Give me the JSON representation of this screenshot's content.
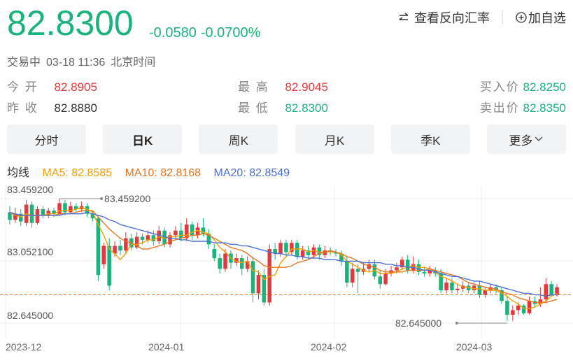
{
  "header": {
    "price": "82.8300",
    "change": "-0.0580",
    "change_pct": "-0.0700%",
    "actions": {
      "reverse": "查看反向汇率",
      "add": "加自选"
    }
  },
  "status": {
    "state": "交易中",
    "datetime": "03-18 11:36",
    "tz": "北京时间"
  },
  "quote": {
    "open_label": "今 开",
    "open": "82.8905",
    "prev_label": "昨 收",
    "prev": "82.8880",
    "high_label": "最 高",
    "high": "82.9045",
    "low_label": "最 低",
    "low": "82.8300",
    "bid_label": "买入价",
    "bid": "82.8250",
    "ask_label": "卖出价",
    "ask": "82.8350"
  },
  "tabs": [
    "分时",
    "日K",
    "周K",
    "月K",
    "季K",
    "更多"
  ],
  "ma": {
    "label": "均线",
    "ma5": "MA5: 82.8585",
    "ma10": "MA10: 82.8168",
    "ma20": "MA20: 82.8549"
  },
  "colors": {
    "up": "#e4393c",
    "down": "#1bb27b",
    "ma5": "#f0a000",
    "ma10": "#e87722",
    "ma20": "#4a6fd6"
  },
  "chart_data": {
    "type": "candlestick",
    "y_labels": [
      "83.459200",
      "83.052100",
      "82.645000"
    ],
    "max_marker": "83.459200",
    "min_marker": "82.645000",
    "x_labels": [
      "2023-12",
      "2024-01",
      "2024-02",
      "2024-03"
    ],
    "reference_line": 82.83,
    "ylim": [
      82.645,
      83.4592
    ],
    "candles": [
      [
        83.37,
        83.32,
        83.41,
        83.29
      ],
      [
        83.32,
        83.36,
        83.4,
        83.3
      ],
      [
        83.36,
        83.31,
        83.39,
        83.28
      ],
      [
        83.3,
        83.42,
        83.45,
        83.28
      ],
      [
        83.42,
        83.3,
        83.44,
        83.27
      ],
      [
        83.3,
        83.39,
        83.41,
        83.29
      ],
      [
        83.39,
        83.35,
        83.41,
        83.33
      ],
      [
        83.35,
        83.38,
        83.4,
        83.33
      ],
      [
        83.38,
        83.36,
        83.4,
        83.34
      ],
      [
        83.36,
        83.43,
        83.46,
        83.35
      ],
      [
        83.43,
        83.37,
        83.45,
        83.35
      ],
      [
        83.37,
        83.41,
        83.44,
        83.36
      ],
      [
        83.41,
        83.39,
        83.43,
        83.37
      ],
      [
        83.39,
        83.41,
        83.44,
        83.37
      ],
      [
        83.41,
        83.36,
        83.43,
        83.34
      ],
      [
        83.36,
        83.33,
        83.38,
        83.31
      ],
      [
        83.33,
        82.96,
        83.35,
        82.92
      ],
      [
        83.03,
        83.15,
        83.17,
        83.0
      ],
      [
        83.15,
        82.89,
        83.2,
        82.86
      ],
      [
        83.1,
        83.15,
        83.18,
        83.08
      ],
      [
        83.15,
        83.12,
        83.19,
        83.09
      ],
      [
        83.12,
        83.2,
        83.24,
        83.1
      ],
      [
        83.2,
        83.14,
        83.23,
        83.12
      ],
      [
        83.14,
        83.21,
        83.24,
        83.13
      ],
      [
        83.21,
        83.19,
        83.23,
        83.16
      ],
      [
        83.19,
        83.22,
        83.25,
        83.17
      ],
      [
        83.22,
        83.18,
        83.25,
        83.15
      ],
      [
        83.18,
        83.25,
        83.28,
        83.16
      ],
      [
        83.25,
        83.16,
        83.27,
        83.14
      ],
      [
        83.16,
        83.22,
        83.24,
        83.14
      ],
      [
        83.22,
        83.25,
        83.28,
        83.2
      ],
      [
        83.25,
        83.2,
        83.3,
        83.18
      ],
      [
        83.2,
        83.29,
        83.33,
        83.18
      ],
      [
        83.29,
        83.22,
        83.31,
        83.19
      ],
      [
        83.22,
        83.27,
        83.3,
        83.2
      ],
      [
        83.27,
        83.23,
        83.33,
        83.21
      ],
      [
        83.23,
        83.16,
        83.26,
        83.13
      ],
      [
        83.13,
        83.07,
        83.16,
        83.05
      ],
      [
        83.07,
        83.0,
        83.1,
        82.97
      ],
      [
        83.0,
        83.1,
        83.13,
        82.98
      ],
      [
        83.1,
        83.04,
        83.12,
        83.0
      ],
      [
        83.04,
        83.07,
        83.1,
        83.02
      ],
      [
        83.07,
        83.0,
        83.09,
        82.96
      ],
      [
        83.0,
        83.05,
        83.08,
        82.98
      ],
      [
        83.05,
        82.84,
        83.08,
        82.78
      ],
      [
        82.84,
        82.96,
        82.99,
        82.8
      ],
      [
        82.96,
        82.78,
        83.0,
        82.76
      ],
      [
        82.78,
        83.13,
        83.16,
        82.76
      ],
      [
        83.13,
        83.1,
        83.17,
        83.06
      ],
      [
        83.1,
        83.17,
        83.19,
        83.08
      ],
      [
        83.17,
        83.11,
        83.19,
        83.09
      ],
      [
        83.11,
        83.17,
        83.19,
        83.09
      ],
      [
        83.17,
        83.08,
        83.19,
        83.06
      ],
      [
        83.08,
        83.12,
        83.15,
        83.06
      ],
      [
        83.12,
        83.09,
        83.15,
        83.07
      ],
      [
        83.09,
        83.14,
        83.16,
        83.07
      ],
      [
        83.14,
        83.09,
        83.16,
        83.06
      ],
      [
        83.09,
        83.12,
        83.15,
        83.07
      ],
      [
        83.12,
        83.11,
        83.14,
        83.09
      ],
      [
        83.11,
        83.1,
        83.13,
        83.08
      ],
      [
        83.1,
        83.05,
        83.12,
        83.02
      ],
      [
        83.05,
        82.91,
        83.08,
        82.88
      ],
      [
        82.91,
        83.0,
        83.04,
        82.88
      ],
      [
        83.0,
        82.98,
        83.03,
        82.84
      ],
      [
        82.98,
        83.0,
        83.04,
        82.96
      ],
      [
        83.0,
        83.03,
        83.06,
        82.98
      ],
      [
        83.03,
        82.95,
        83.06,
        82.93
      ],
      [
        82.95,
        82.9,
        82.99,
        82.87
      ],
      [
        82.9,
        82.97,
        83.0,
        82.89
      ],
      [
        82.97,
        82.99,
        83.02,
        82.95
      ],
      [
        82.99,
        83.01,
        83.04,
        82.97
      ],
      [
        83.01,
        83.06,
        83.08,
        82.99
      ],
      [
        83.06,
        82.99,
        83.09,
        82.97
      ],
      [
        82.99,
        83.03,
        83.08,
        82.97
      ],
      [
        83.03,
        82.98,
        83.06,
        82.96
      ],
      [
        82.98,
        82.97,
        83.01,
        82.95
      ],
      [
        82.97,
        82.99,
        83.02,
        82.95
      ],
      [
        82.99,
        82.97,
        83.01,
        82.95
      ],
      [
        82.97,
        82.86,
        83.0,
        82.84
      ],
      [
        82.86,
        82.91,
        82.94,
        82.84
      ],
      [
        82.91,
        82.86,
        82.94,
        82.84
      ],
      [
        82.86,
        82.87,
        82.9,
        82.84
      ],
      [
        82.87,
        82.89,
        82.92,
        82.85
      ],
      [
        82.89,
        82.86,
        82.91,
        82.84
      ],
      [
        82.86,
        82.89,
        82.91,
        82.84
      ],
      [
        82.89,
        82.83,
        82.92,
        82.81
      ],
      [
        82.83,
        82.86,
        82.88,
        82.81
      ],
      [
        82.86,
        82.88,
        82.9,
        82.84
      ],
      [
        82.88,
        82.86,
        82.9,
        82.84
      ],
      [
        82.86,
        82.79,
        82.88,
        82.77
      ],
      [
        82.79,
        82.7,
        82.82,
        82.66
      ],
      [
        82.7,
        82.73,
        82.76,
        82.66
      ],
      [
        82.73,
        82.76,
        82.78,
        82.7
      ],
      [
        82.76,
        82.71,
        82.77,
        82.7
      ],
      [
        82.71,
        82.79,
        82.82,
        82.7
      ],
      [
        82.79,
        82.77,
        82.82,
        82.75
      ],
      [
        82.77,
        82.8,
        82.88,
        82.75
      ],
      [
        82.8,
        82.9,
        82.94,
        82.78
      ],
      [
        82.9,
        82.83,
        82.92,
        82.82
      ],
      [
        82.83,
        82.88,
        82.9,
        82.82
      ]
    ],
    "ma5": [
      83.37,
      83.35,
      83.34,
      83.36,
      83.35,
      83.35,
      83.35,
      83.36,
      83.36,
      83.38,
      83.38,
      83.38,
      83.39,
      83.4,
      83.39,
      83.37,
      83.29,
      83.22,
      83.13,
      83.1,
      83.06,
      83.1,
      83.16,
      83.16,
      83.17,
      83.19,
      83.19,
      83.21,
      83.2,
      83.21,
      83.21,
      83.22,
      83.22,
      83.24,
      83.25,
      83.24,
      83.23,
      83.19,
      83.14,
      83.11,
      83.07,
      83.05,
      83.04,
      83.05,
      82.99,
      82.98,
      82.93,
      82.95,
      82.96,
      83.04,
      83.08,
      83.13,
      83.13,
      83.13,
      83.11,
      83.12,
      83.11,
      83.11,
      83.11,
      83.11,
      83.09,
      83.05,
      83.03,
      83.01,
      82.99,
      82.98,
      82.99,
      82.97,
      82.97,
      82.97,
      82.98,
      83.0,
      83.01,
      83.02,
      83.01,
      83.01,
      83.0,
      82.98,
      82.95,
      82.94,
      82.92,
      82.9,
      82.88,
      82.88,
      82.87,
      82.87,
      82.86,
      82.86,
      82.86,
      82.84,
      82.82,
      82.79,
      82.77,
      82.74,
      82.74,
      82.75,
      82.77,
      82.79,
      82.82,
      82.84
    ],
    "ma10": [
      83.37,
      83.35,
      83.35,
      83.35,
      83.35,
      83.35,
      83.35,
      83.35,
      83.35,
      83.36,
      83.36,
      83.36,
      83.37,
      83.38,
      83.38,
      83.38,
      83.34,
      83.3,
      83.26,
      83.23,
      83.2,
      83.18,
      83.17,
      83.15,
      83.13,
      83.13,
      83.14,
      83.15,
      83.16,
      83.18,
      83.19,
      83.2,
      83.21,
      83.22,
      83.22,
      83.23,
      83.22,
      83.2,
      83.18,
      83.16,
      83.14,
      83.13,
      83.12,
      83.1,
      83.07,
      83.05,
      83.02,
      83.01,
      83.01,
      83.01,
      83.01,
      83.02,
      83.04,
      83.05,
      83.06,
      83.08,
      83.1,
      83.11,
      83.12,
      83.11,
      83.1,
      83.08,
      83.07,
      83.05,
      83.03,
      83.02,
      83.01,
      82.99,
      82.98,
      82.98,
      82.98,
      82.98,
      82.99,
      82.99,
      82.99,
      82.99,
      83.0,
      82.99,
      82.98,
      82.97,
      82.96,
      82.95,
      82.93,
      82.91,
      82.9,
      82.89,
      82.88,
      82.87,
      82.87,
      82.85,
      82.84,
      82.83,
      82.81,
      82.8,
      82.79,
      82.78,
      82.78,
      82.78,
      82.79,
      82.8
    ],
    "ma20": [
      83.37,
      83.36,
      83.35,
      83.35,
      83.35,
      83.35,
      83.35,
      83.35,
      83.35,
      83.35,
      83.36,
      83.36,
      83.36,
      83.36,
      83.37,
      83.36,
      83.35,
      83.34,
      83.32,
      83.31,
      83.29,
      83.28,
      83.27,
      83.26,
      83.25,
      83.24,
      83.23,
      83.22,
      83.21,
      83.2,
      83.2,
      83.19,
      83.19,
      83.18,
      83.18,
      83.18,
      83.18,
      83.17,
      83.17,
      83.17,
      83.16,
      83.16,
      83.15,
      83.15,
      83.14,
      83.13,
      83.12,
      83.11,
      83.1,
      83.1,
      83.09,
      83.09,
      83.08,
      83.08,
      83.07,
      83.07,
      83.07,
      83.06,
      83.06,
      83.06,
      83.05,
      83.05,
      83.05,
      83.05,
      83.04,
      83.04,
      83.04,
      83.04,
      83.03,
      83.03,
      83.02,
      83.02,
      83.01,
      83.01,
      83.0,
      82.99,
      82.99,
      82.98,
      82.97,
      82.96,
      82.95,
      82.95,
      82.94,
      82.93,
      82.92,
      82.92,
      82.91,
      82.9,
      82.89,
      82.88,
      82.87,
      82.86,
      82.85,
      82.84,
      82.84,
      82.83,
      82.83,
      82.82,
      82.83,
      82.83
    ]
  }
}
